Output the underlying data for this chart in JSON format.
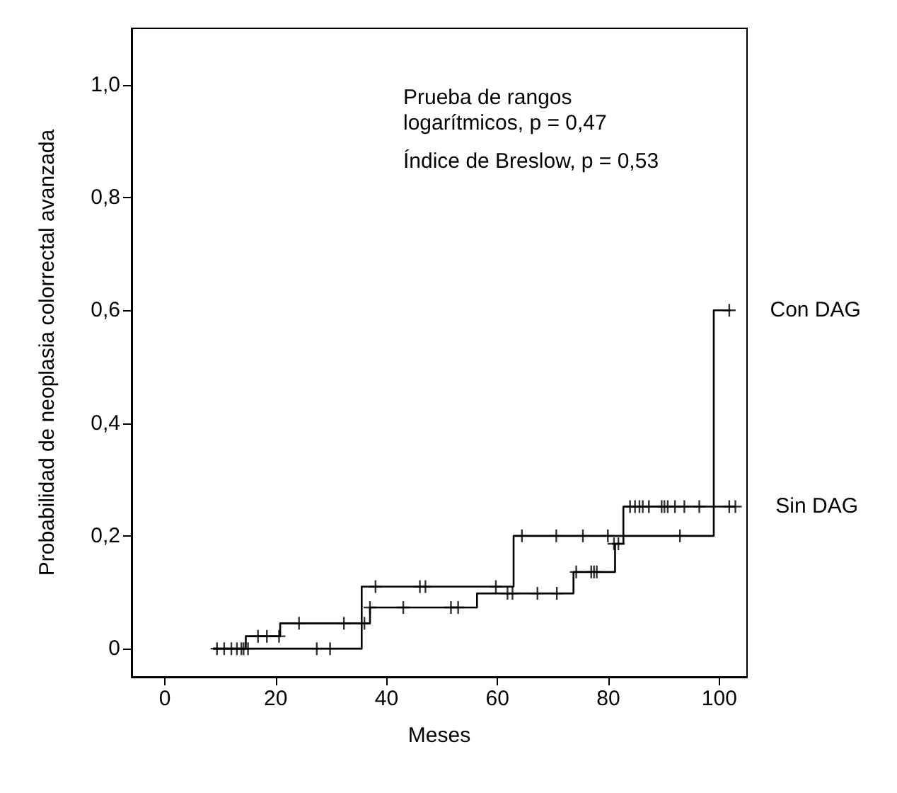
{
  "chart_data": {
    "type": "step",
    "xlabel": "Meses",
    "ylabel": "Probabilidad de neoplasia colorrectal avanzada",
    "annotations": [
      "Prueba de rangos\nlogarítmicos, p = 0,47",
      "Índice de Breslow, p = 0,53"
    ],
    "xlim": [
      -6,
      105
    ],
    "xticks": [
      0,
      20,
      40,
      60,
      80,
      100
    ],
    "ylim": [
      -0.05,
      1.1
    ],
    "yticks": [
      0,
      {
        "value": 0.2,
        "label": "0,2"
      },
      {
        "value": 0.4,
        "label": "0,4"
      },
      {
        "value": 0.6,
        "label": "0,6"
      },
      {
        "value": 0.8,
        "label": "0,8"
      },
      {
        "value": 1.0,
        "label": "1,0"
      }
    ],
    "line_style": "solid",
    "series": [
      {
        "name": "Con DAG",
        "color": "#000000",
        "x": [
          8.7,
          14.6,
          20.8,
          35.5,
          62.9,
          99,
          102
        ],
        "values": [
          0,
          0.022,
          0.045,
          0.11,
          0.2,
          0.6,
          0.6
        ]
      },
      {
        "name": "Sin DAG",
        "color": "#000000",
        "x": [
          8.7,
          35.5,
          37,
          56.3,
          73.7,
          81.2,
          82.7,
          103
        ],
        "values": [
          0,
          0.045,
          0.073,
          0.098,
          0.136,
          0.186,
          0.252,
          0.252
        ]
      },
      {
        "type": "scatter",
        "marker": "cross",
        "color": "#000000",
        "x": [
          9.4,
          10.7,
          12,
          13,
          16.8,
          18.4,
          20.6,
          24.2,
          32.3,
          38,
          46,
          47,
          59.7,
          64.4,
          70.6,
          75.4,
          79.9,
          92.9,
          101.8
        ],
        "values": [
          0,
          0,
          0,
          0,
          0.022,
          0.022,
          0.022,
          0.045,
          0.045,
          0.11,
          0.11,
          0.11,
          0.11,
          0.2,
          0.2,
          0.2,
          0.2,
          0.2,
          0.6
        ]
      },
      {
        "type": "scatter",
        "marker": "cross",
        "color": "#000000",
        "x": [
          13.8,
          14.2,
          15,
          27.4,
          29.8,
          36,
          37,
          43,
          51.6,
          52.9,
          61.8,
          62.7,
          67.2,
          70.7,
          74.2,
          76.9,
          77.4,
          77.9,
          81,
          81.8,
          83.9,
          84.8,
          85.6,
          86.2,
          87.3,
          89.6,
          90.1,
          90.7,
          92,
          93.7,
          96.4,
          101.8,
          102.9
        ],
        "values": [
          0,
          0,
          0,
          0,
          0,
          0.045,
          0.073,
          0.073,
          0.073,
          0.073,
          0.098,
          0.098,
          0.098,
          0.098,
          0.136,
          0.136,
          0.136,
          0.136,
          0.186,
          0.186,
          0.252,
          0.252,
          0.252,
          0.252,
          0.252,
          0.252,
          0.252,
          0.252,
          0.252,
          0.252,
          0.252,
          0.252,
          0.252
        ]
      }
    ]
  }
}
